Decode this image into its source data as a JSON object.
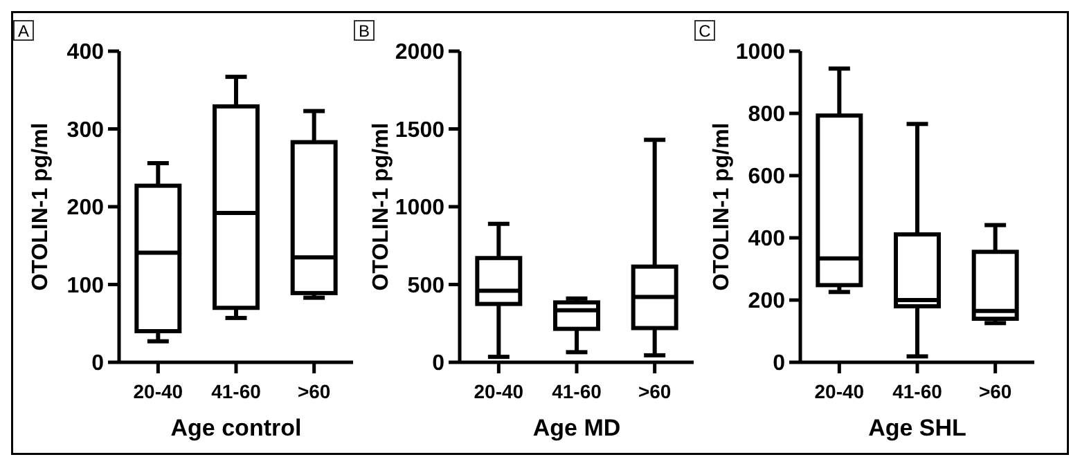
{
  "chart_data": [
    {
      "type": "box",
      "title": "A",
      "xlabel": "Age control",
      "ylabel": "OTOLIN-1 pg/ml",
      "categories": [
        "20-40",
        "41-60",
        ">60"
      ],
      "ylim": [
        0,
        400
      ],
      "yticks": [
        0,
        100,
        200,
        300,
        400
      ],
      "grid": false,
      "boxes": [
        {
          "low": 27,
          "q1": 40,
          "median": 141,
          "q3": 227,
          "high": 256
        },
        {
          "low": 57,
          "q1": 70,
          "median": 192,
          "q3": 329,
          "high": 367
        },
        {
          "low": 83,
          "q1": 89,
          "median": 135,
          "q3": 283,
          "high": 323
        }
      ]
    },
    {
      "type": "box",
      "title": "B",
      "xlabel": "Age MD",
      "ylabel": "OTOLIN-1 pg/ml",
      "categories": [
        "20-40",
        "41-60",
        ">60"
      ],
      "ylim": [
        0,
        2000
      ],
      "yticks": [
        0,
        500,
        1000,
        1500,
        2000
      ],
      "grid": false,
      "boxes": [
        {
          "low": 35,
          "q1": 375,
          "median": 460,
          "q3": 670,
          "high": 890
        },
        {
          "low": 65,
          "q1": 215,
          "median": 335,
          "q3": 385,
          "high": 410
        },
        {
          "low": 45,
          "q1": 220,
          "median": 420,
          "q3": 615,
          "high": 1430
        }
      ]
    },
    {
      "type": "box",
      "title": "C",
      "xlabel": "Age SHL",
      "ylabel": "OTOLIN-1 pg/ml",
      "categories": [
        "20-40",
        "41-60",
        ">60"
      ],
      "ylim": [
        0,
        1000
      ],
      "yticks": [
        0,
        200,
        400,
        600,
        800,
        1000
      ],
      "grid": false,
      "boxes": [
        {
          "low": 226,
          "q1": 248,
          "median": 334,
          "q3": 793,
          "high": 944
        },
        {
          "low": 19,
          "q1": 180,
          "median": 200,
          "q3": 411,
          "high": 766
        },
        {
          "low": 126,
          "q1": 140,
          "median": 165,
          "q3": 355,
          "high": 441
        }
      ]
    }
  ]
}
